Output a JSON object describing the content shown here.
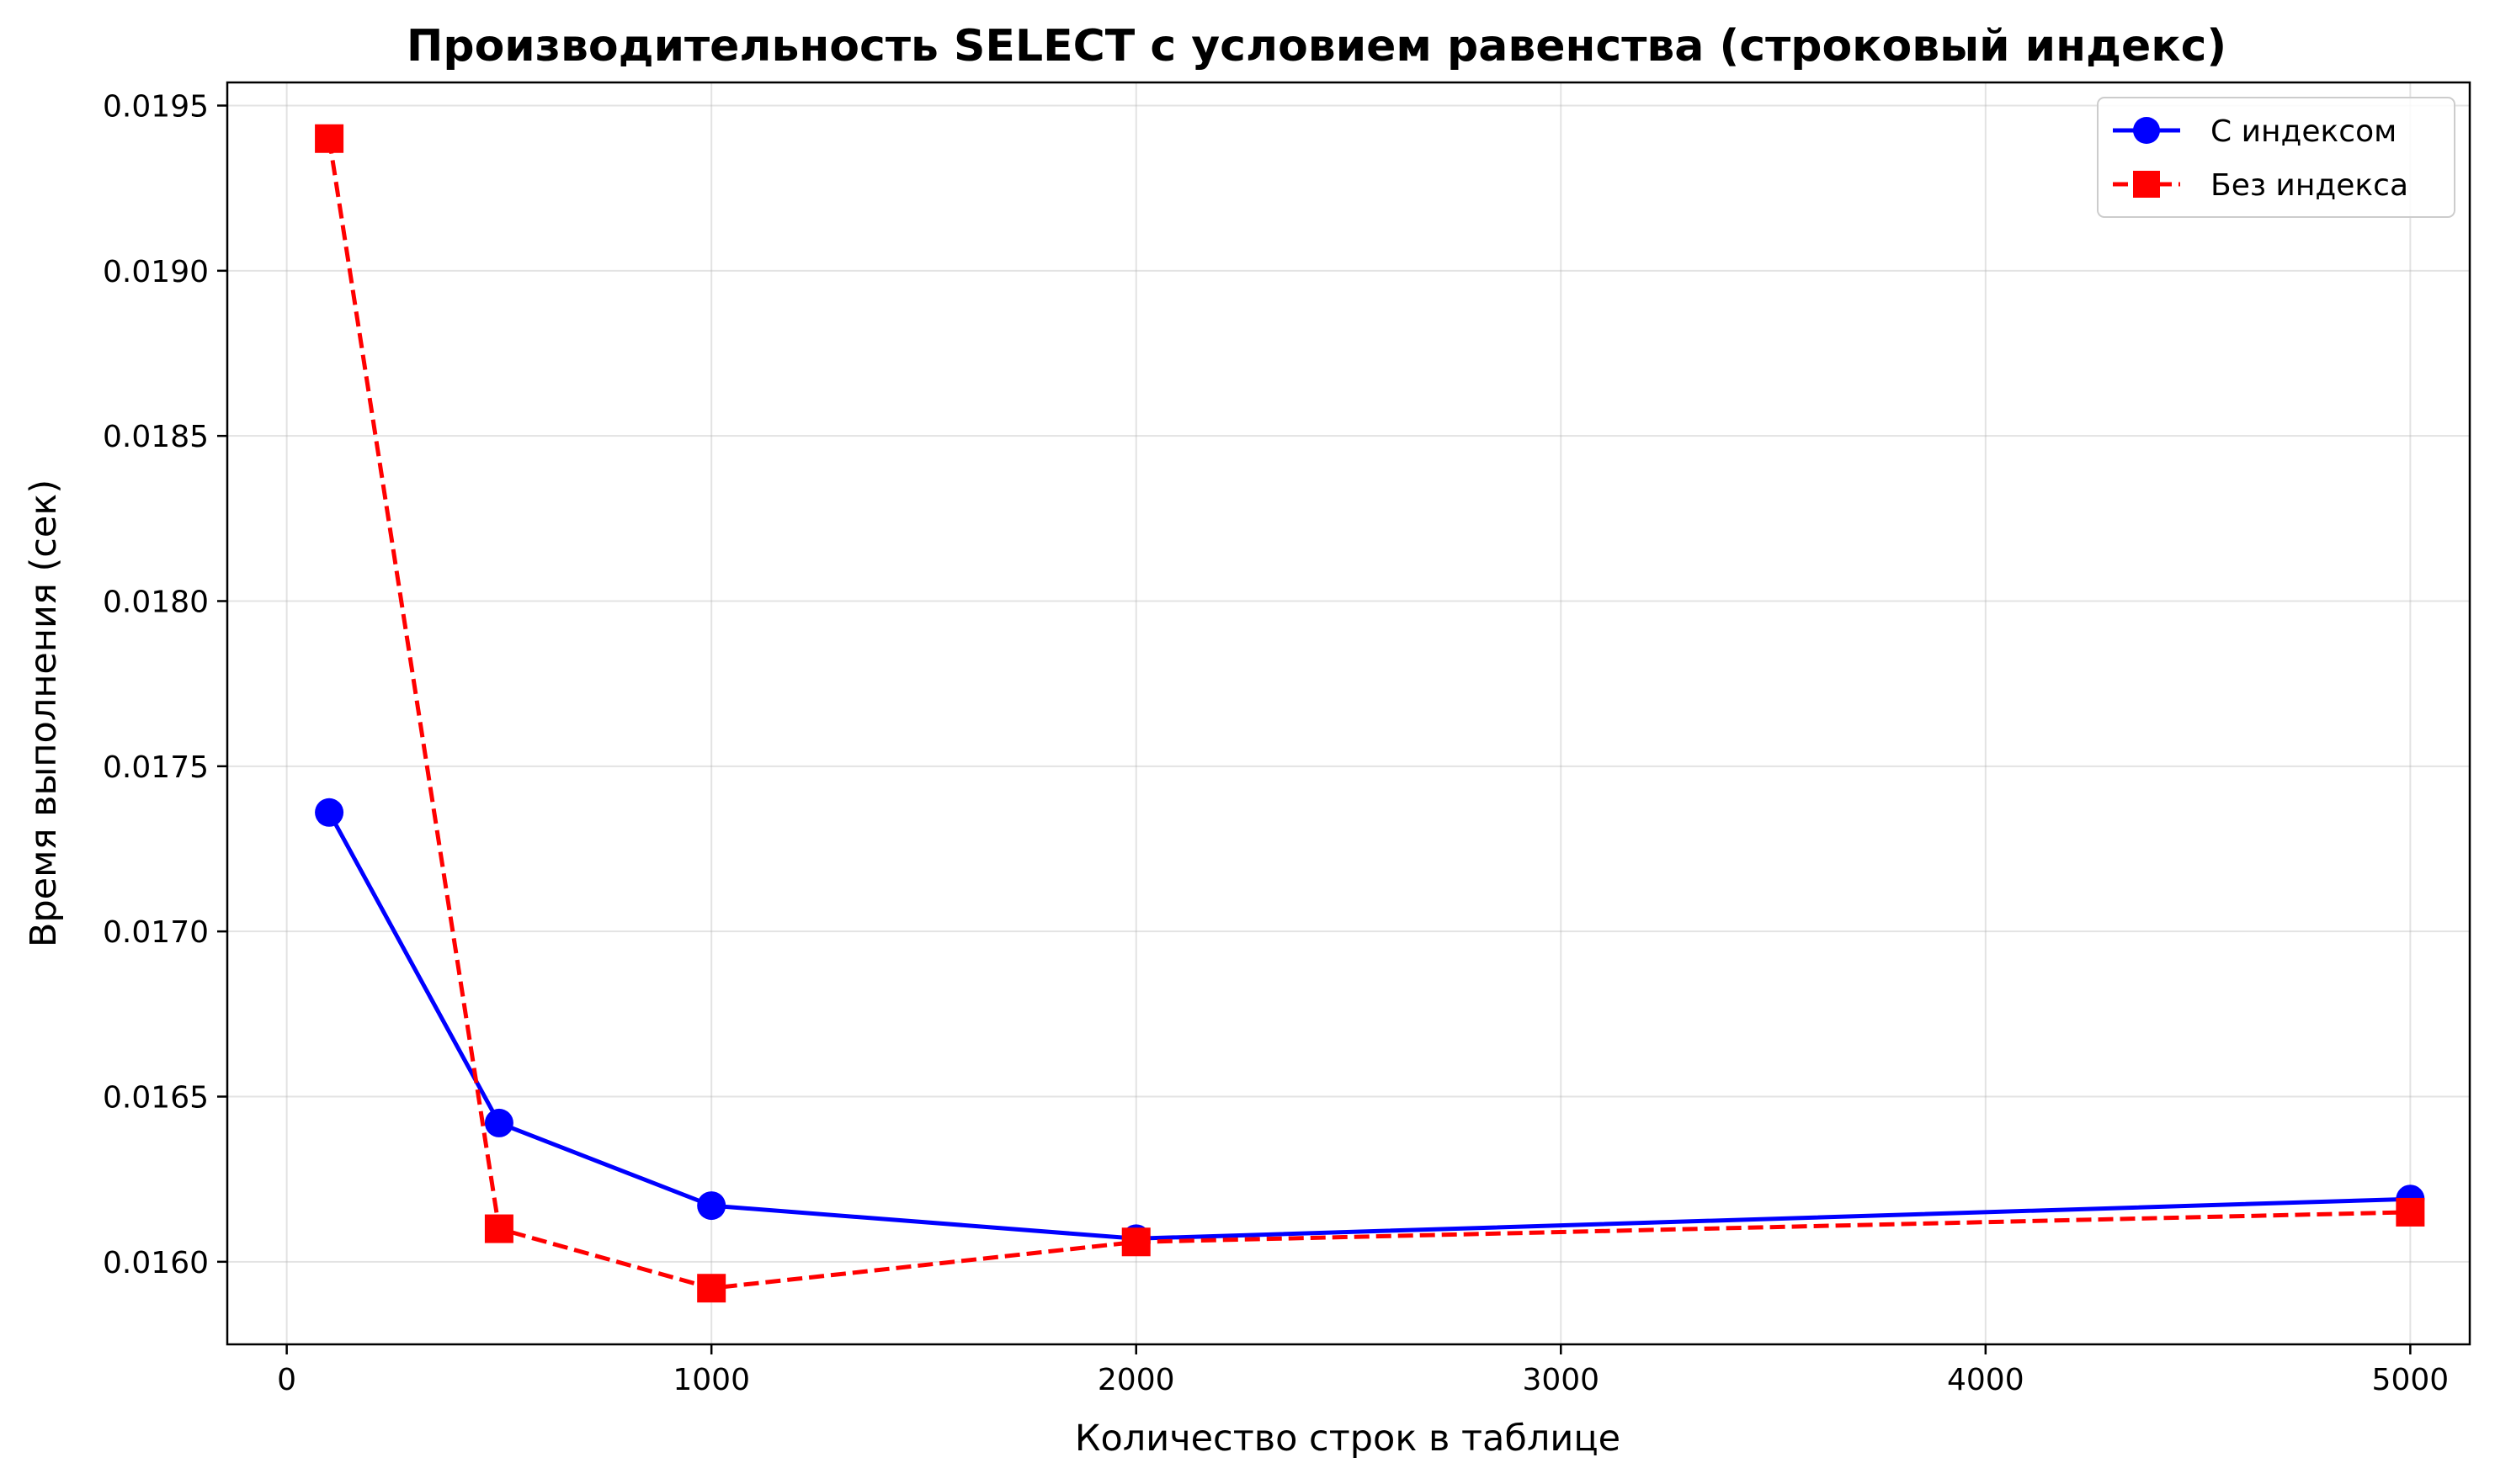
{
  "chart_data": {
    "type": "line",
    "title": "Производительность SELECT с условием равенства (строковый индекс)",
    "xlabel": "Количество строк в таблице",
    "ylabel": "Время выполнения (сек)",
    "xlim": [
      -140,
      5140
    ],
    "ylim": [
      0.01575,
      0.01957
    ],
    "xticks": [
      0,
      1000,
      2000,
      3000,
      4000,
      5000
    ],
    "xtick_labels": [
      "0",
      "1000",
      "2000",
      "3000",
      "4000",
      "5000"
    ],
    "yticks": [
      0.016,
      0.0165,
      0.017,
      0.0175,
      0.018,
      0.0185,
      0.019,
      0.0195
    ],
    "ytick_labels": [
      "0.0160",
      "0.0165",
      "0.0170",
      "0.0175",
      "0.0180",
      "0.0185",
      "0.0190",
      "0.0195"
    ],
    "grid": true,
    "legend_position": "top-right",
    "x": [
      100,
      500,
      1000,
      2000,
      5000
    ],
    "series": [
      {
        "name": "С индексом",
        "values": [
          0.01736,
          0.01642,
          0.01617,
          0.01607,
          0.01619
        ],
        "color": "#0000ff",
        "marker": "circle",
        "linestyle": "solid"
      },
      {
        "name": "Без индекса",
        "values": [
          0.0194,
          0.0161,
          0.01592,
          0.01606,
          0.01615
        ],
        "color": "#ff0000",
        "marker": "square",
        "linestyle": "dashed"
      }
    ]
  }
}
